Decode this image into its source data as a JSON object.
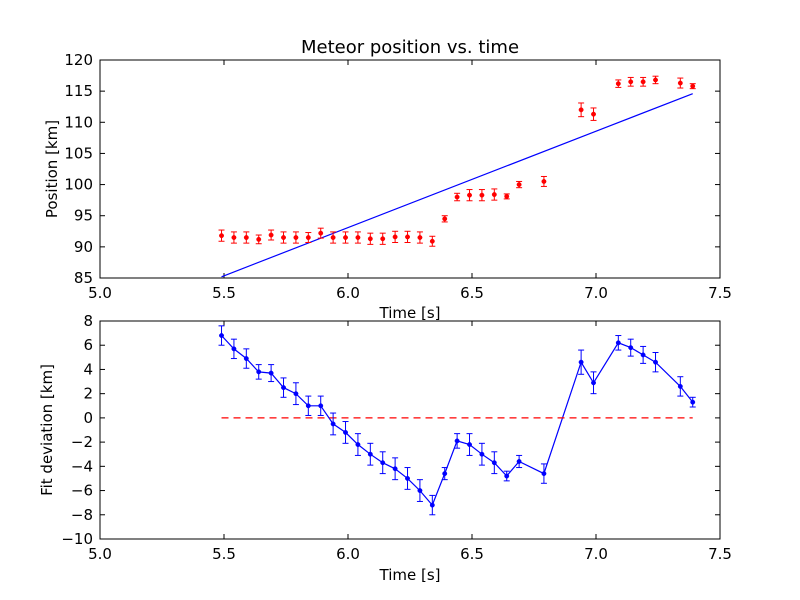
{
  "chart_data": [
    {
      "type": "scatter",
      "title": "Meteor position vs. time",
      "xlabel": "Time [s]",
      "ylabel": "Position [km]",
      "xlim": [
        5.0,
        7.5
      ],
      "ylim": [
        85,
        120
      ],
      "xticks": [
        "5.0",
        "5.5",
        "6.0",
        "6.5",
        "7.0",
        "7.5"
      ],
      "yticks": [
        "85",
        "90",
        "95",
        "100",
        "105",
        "110",
        "115",
        "120"
      ],
      "grid": false,
      "colors": {
        "points": "#ff0000",
        "fit": "#0000ff"
      },
      "series": [
        {
          "kind": "errorbar-points",
          "x": [
            5.49,
            5.54,
            5.59,
            5.64,
            5.69,
            5.74,
            5.79,
            5.84,
            5.89,
            5.94,
            5.99,
            6.04,
            6.09,
            6.14,
            6.19,
            6.24,
            6.29,
            6.34,
            6.39,
            6.44,
            6.49,
            6.54,
            6.59,
            6.64,
            6.69,
            6.79,
            6.94,
            6.99,
            7.09,
            7.14,
            7.19,
            7.24,
            7.34,
            7.39
          ],
          "y": [
            91.8,
            91.5,
            91.5,
            91.2,
            91.9,
            91.5,
            91.5,
            91.5,
            92.2,
            91.5,
            91.5,
            91.5,
            91.3,
            91.3,
            91.6,
            91.6,
            91.5,
            90.9,
            94.5,
            98.0,
            98.3,
            98.3,
            98.4,
            98.1,
            100.0,
            100.5,
            112.0,
            111.3,
            116.2,
            116.5,
            116.5,
            116.8,
            116.3,
            115.8
          ],
          "yerr": [
            0.9,
            0.9,
            0.9,
            0.7,
            0.8,
            0.9,
            0.9,
            0.8,
            0.8,
            0.9,
            0.9,
            0.9,
            0.9,
            0.9,
            0.9,
            0.9,
            0.9,
            0.8,
            0.5,
            0.6,
            0.9,
            0.9,
            0.9,
            0.4,
            0.5,
            0.8,
            1.1,
            1.0,
            0.6,
            0.7,
            0.7,
            0.6,
            0.8,
            0.4
          ]
        },
        {
          "kind": "fit-line",
          "x": [
            5.49,
            7.39
          ],
          "y": [
            85.2,
            114.6
          ]
        }
      ]
    },
    {
      "type": "line",
      "title": "",
      "xlabel": "Time [s]",
      "ylabel": "Fit deviation [km]",
      "xlim": [
        5.0,
        7.5
      ],
      "ylim": [
        -10,
        8
      ],
      "xticks": [
        "5.0",
        "5.5",
        "6.0",
        "6.5",
        "7.0",
        "7.5"
      ],
      "yticks": [
        "−10",
        "−8",
        "−6",
        "−4",
        "−2",
        "0",
        "2",
        "4",
        "6",
        "8"
      ],
      "grid": false,
      "colors": {
        "deviation": "#0000ff",
        "zero": "#ff0000"
      },
      "series": [
        {
          "kind": "errorbar-line",
          "x": [
            5.49,
            5.54,
            5.59,
            5.64,
            5.69,
            5.74,
            5.79,
            5.84,
            5.89,
            5.94,
            5.99,
            6.04,
            6.09,
            6.14,
            6.19,
            6.24,
            6.29,
            6.34,
            6.39,
            6.44,
            6.49,
            6.54,
            6.59,
            6.64,
            6.69,
            6.79,
            6.94,
            6.99,
            7.09,
            7.14,
            7.19,
            7.24,
            7.34,
            7.39
          ],
          "y": [
            6.8,
            5.7,
            4.9,
            3.8,
            3.7,
            2.5,
            2.0,
            1.0,
            1.0,
            -0.5,
            -1.2,
            -2.2,
            -3.0,
            -3.7,
            -4.2,
            -5.0,
            -6.0,
            -7.2,
            -4.6,
            -1.9,
            -2.2,
            -3.0,
            -3.7,
            -4.8,
            -3.6,
            -4.6,
            4.6,
            2.9,
            6.2,
            5.8,
            5.2,
            4.6,
            2.6,
            1.3
          ],
          "yerr": [
            0.8,
            0.8,
            0.8,
            0.6,
            0.7,
            0.8,
            0.9,
            0.8,
            0.8,
            0.9,
            0.9,
            0.9,
            0.9,
            0.9,
            0.9,
            0.9,
            0.9,
            0.8,
            0.5,
            0.6,
            0.9,
            0.9,
            0.9,
            0.4,
            0.5,
            0.8,
            1.0,
            0.9,
            0.6,
            0.7,
            0.7,
            0.8,
            0.8,
            0.4
          ]
        },
        {
          "kind": "zero-line",
          "x": [
            5.49,
            7.39
          ],
          "y": [
            0,
            0
          ]
        }
      ]
    }
  ]
}
